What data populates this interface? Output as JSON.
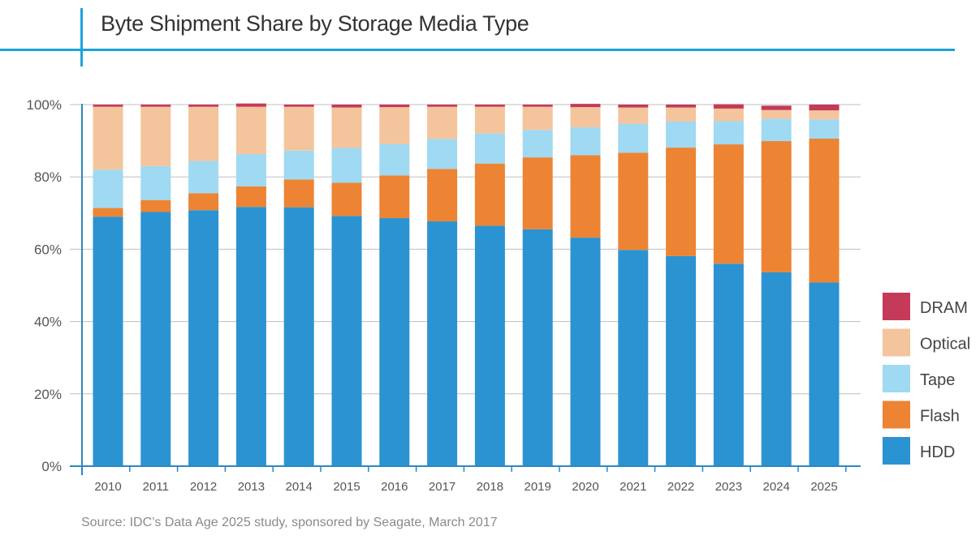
{
  "chart_data": {
    "type": "bar",
    "stacked": true,
    "title": "Byte Shipment Share by Storage Media Type",
    "source": "Source: IDC’s Data Age 2025 study, sponsored by Seagate, March 2017",
    "xlabel": "",
    "ylabel": "",
    "ylim": [
      0,
      100
    ],
    "yticks": [
      "0%",
      "20%",
      "40%",
      "60%",
      "80%",
      "100%"
    ],
    "grid": true,
    "legend_position": "right",
    "categories": [
      "2010",
      "2011",
      "2012",
      "2013",
      "2014",
      "2015",
      "2016",
      "2017",
      "2018",
      "2019",
      "2020",
      "2021",
      "2022",
      "2023",
      "2024",
      "2025"
    ],
    "series": [
      {
        "name": "HDD",
        "color": "#2b93d1",
        "values": [
          69,
          70.3,
          70.8,
          71.7,
          71.6,
          69.2,
          68.6,
          67.7,
          66.5,
          65.5,
          63.2,
          59.8,
          58.1,
          56.0,
          53.6,
          50.8
        ]
      },
      {
        "name": "Flash",
        "color": "#ec8434",
        "values": [
          2.4,
          3.3,
          4.7,
          5.7,
          7.7,
          9.2,
          11.8,
          14.5,
          17.2,
          19.9,
          22.8,
          26.9,
          30.0,
          33.0,
          36.3,
          39.8
        ]
      },
      {
        "name": "Tape",
        "color": "#9fd9f2",
        "values": [
          10.6,
          9.4,
          8.9,
          8.9,
          8.0,
          9.6,
          8.7,
          8.3,
          8.3,
          7.6,
          7.7,
          8.0,
          7.2,
          6.4,
          6.2,
          5.3
        ]
      },
      {
        "name": "Optical",
        "color": "#f4c49c",
        "values": [
          17.4,
          16.4,
          15.0,
          13.1,
          12.1,
          11.2,
          10.2,
          8.9,
          7.4,
          6.4,
          5.6,
          4.5,
          3.9,
          3.5,
          2.4,
          2.5
        ]
      },
      {
        "name": "DRAM",
        "color": "#c43a58",
        "values": [
          0.6,
          0.6,
          0.6,
          0.9,
          0.6,
          0.8,
          0.7,
          0.6,
          0.6,
          0.6,
          0.9,
          0.8,
          0.8,
          1.2,
          1.2,
          1.6
        ]
      }
    ]
  }
}
